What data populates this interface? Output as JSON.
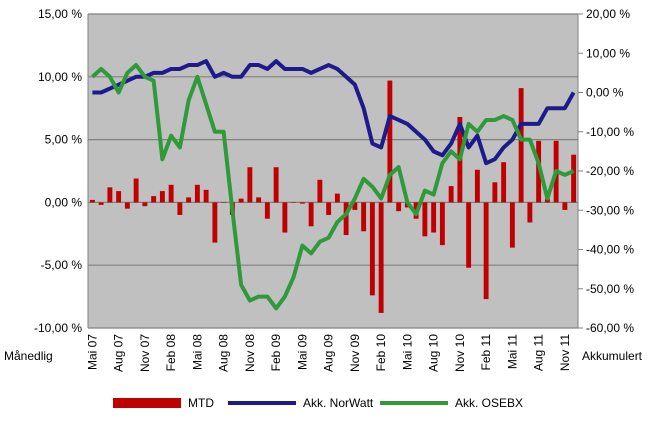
{
  "chart_data": {
    "type": "bar-line",
    "categories": [
      "Mai 07",
      null,
      null,
      "Aug 07",
      null,
      null,
      "Nov 07",
      null,
      null,
      "Feb 08",
      null,
      null,
      "Mai 08",
      null,
      null,
      "Aug 08",
      null,
      null,
      "Nov 08",
      null,
      null,
      "Feb 09",
      null,
      null,
      "Mai 09",
      null,
      null,
      "Aug 09",
      null,
      null,
      "Nov 09",
      null,
      null,
      "Feb 10",
      null,
      null,
      "Mai 10",
      null,
      null,
      "Aug 10",
      null,
      null,
      "Nov 10",
      null,
      null,
      "Feb 11",
      null,
      null,
      "Mai 11",
      null,
      null,
      "Aug 11",
      null,
      null,
      "Nov 11",
      null
    ],
    "series": [
      {
        "name": "MTD",
        "color": "#c00000",
        "kind": "bar",
        "values": [
          0.2,
          -0.2,
          1.2,
          0.9,
          -0.5,
          1.9,
          -0.3,
          0.5,
          0.9,
          1.4,
          -1.0,
          0.4,
          1.4,
          1.0,
          -3.2,
          0.0,
          -1.0,
          0.3,
          2.8,
          0.4,
          -1.3,
          2.8,
          -2.4,
          0.0,
          -0.1,
          -1.9,
          1.8,
          -1.0,
          0.7,
          -2.6,
          -0.6,
          -2.3,
          -7.4,
          -8.8,
          9.7,
          -0.7,
          -0.4,
          -1.3,
          -2.7,
          -2.4,
          -3.4,
          1.3,
          6.8,
          -5.2,
          2.6,
          -7.7,
          1.6,
          3.2,
          -3.6,
          9.1,
          -1.6,
          4.9,
          0.3,
          4.9,
          -0.6,
          3.8
        ]
      },
      {
        "name": "Akk. NorWatt",
        "color": "#1f1a8c",
        "kind": "line",
        "axis": "y2",
        "values": [
          0,
          0,
          1,
          2,
          3,
          4,
          4,
          5,
          5,
          6,
          6,
          7,
          7,
          8,
          4,
          5,
          4,
          4,
          7,
          7,
          6,
          8,
          6,
          6,
          6,
          5,
          6,
          7,
          6,
          4,
          2,
          -4,
          -13,
          -14,
          -6,
          -7,
          -8,
          -10,
          -12,
          -15,
          -16,
          -13,
          -8,
          -14,
          -11,
          -18,
          -17,
          -14,
          -12,
          -8,
          -8,
          -8,
          -4,
          -4,
          -4,
          0
        ]
      },
      {
        "name": "Akk. OSEBX",
        "color": "#2e9a3a",
        "kind": "line",
        "axis": "y2",
        "values": [
          4,
          6,
          4,
          0,
          5,
          7,
          4,
          3,
          -17,
          -11,
          -14,
          -2,
          4,
          -3,
          -10,
          -10,
          -30,
          -49,
          -53,
          -52,
          -52,
          -55,
          -52,
          -47,
          -39,
          -41,
          -38,
          -37,
          -33,
          -31,
          -27,
          -22,
          -24,
          -27,
          -21,
          -19,
          -28,
          -31,
          -25,
          -26,
          -18,
          -15,
          -17,
          -8,
          -10,
          -7,
          -7,
          -6,
          -7,
          -12,
          -12,
          -18,
          -27,
          -20,
          -21,
          -20
        ]
      }
    ],
    "ylim": [
      -10,
      15
    ],
    "yticks": [
      {
        "value": -10,
        "label": "-10,00 %"
      },
      {
        "value": -5,
        "label": "-5,00 %"
      },
      {
        "value": 0,
        "label": "0,00 %"
      },
      {
        "value": 5,
        "label": "5,00 %"
      },
      {
        "value": 10,
        "label": "10,00 %"
      },
      {
        "value": 15,
        "label": "15,00 %"
      }
    ],
    "y2lim": [
      -60,
      20
    ],
    "y2ticks": [
      {
        "value": -60,
        "label": "-60,00 %"
      },
      {
        "value": -50,
        "label": "-50,00 %"
      },
      {
        "value": -40,
        "label": "-40,00 %"
      },
      {
        "value": -30,
        "label": "-30,00 %"
      },
      {
        "value": -20,
        "label": "-20,00 %"
      },
      {
        "value": -10,
        "label": "-10,00 %"
      },
      {
        "value": 0,
        "label": "0,00 %"
      },
      {
        "value": 10,
        "label": "10,00 %"
      },
      {
        "value": 20,
        "label": "20,00 %"
      }
    ],
    "ylabel": "Månedlig",
    "y2label": "Akkumulert",
    "grid": true,
    "legend": "bottom"
  }
}
